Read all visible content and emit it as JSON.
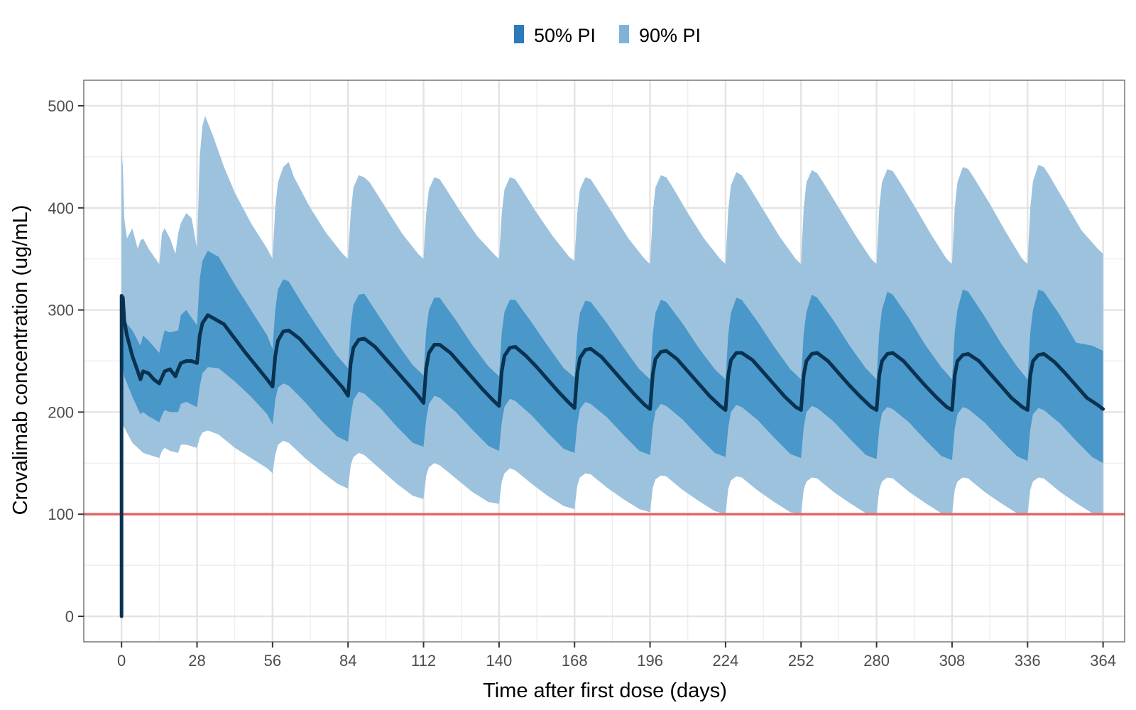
{
  "chart_data": {
    "type": "area",
    "title": "",
    "xlabel": "Time after first dose (days)",
    "ylabel": "Crovalimab concentration (ug/mL)",
    "xlim": [
      -14,
      372
    ],
    "ylim": [
      -25,
      525
    ],
    "x_ticks": [
      0,
      28,
      56,
      84,
      112,
      140,
      168,
      196,
      224,
      252,
      280,
      308,
      336,
      364
    ],
    "y_ticks": [
      0,
      100,
      200,
      300,
      400,
      500
    ],
    "grid": true,
    "legend": {
      "placement": "top",
      "items": [
        {
          "label": "50% PI",
          "color": "#2b7bba"
        },
        {
          "label": "90% PI",
          "color": "#7fb2d8"
        }
      ]
    },
    "reference_line": {
      "y": 100,
      "color": "#e06666"
    },
    "colors": {
      "band90": "#9cc2de",
      "band50": "#4a97c9",
      "median": "#08324f"
    },
    "series": [
      {
        "name": "",
        "kind": "median",
        "x": [
          0,
          0,
          0.5,
          1,
          2,
          4,
          6,
          7,
          8,
          10,
          12,
          14,
          15,
          16,
          18,
          20,
          21,
          22,
          24,
          26,
          28,
          29,
          30,
          32,
          34,
          38,
          42,
          46,
          50,
          54,
          56,
          57,
          58,
          60,
          62,
          66,
          70,
          74,
          78,
          82,
          84,
          85,
          86,
          88,
          90,
          94,
          98,
          102,
          106,
          110,
          112,
          113,
          114,
          116,
          118,
          122,
          126,
          130,
          134,
          138,
          140,
          141,
          142,
          144,
          146,
          150,
          154,
          158,
          162,
          166,
          168,
          169,
          170,
          172,
          174,
          178,
          182,
          186,
          190,
          194,
          196,
          197,
          198,
          200,
          202,
          206,
          210,
          214,
          218,
          222,
          224,
          225,
          226,
          228,
          230,
          234,
          238,
          242,
          246,
          250,
          252,
          253,
          254,
          256,
          258,
          262,
          266,
          270,
          274,
          278,
          280,
          281,
          282,
          284,
          286,
          290,
          294,
          298,
          302,
          306,
          308,
          309,
          310,
          312,
          314,
          318,
          322,
          326,
          330,
          334,
          336,
          337,
          338,
          340,
          342,
          346,
          350,
          354,
          358,
          362,
          364
        ],
        "y": [
          0,
          314,
          312,
          290,
          275,
          255,
          240,
          232,
          240,
          238,
          232,
          228,
          234,
          240,
          242,
          235,
          242,
          248,
          250,
          250,
          248,
          275,
          287,
          295,
          292,
          286,
          272,
          258,
          245,
          232,
          225,
          255,
          270,
          279,
          280,
          272,
          260,
          248,
          236,
          224,
          216,
          248,
          263,
          271,
          272,
          264,
          252,
          240,
          228,
          216,
          209,
          243,
          258,
          266,
          266,
          258,
          246,
          234,
          222,
          211,
          206,
          240,
          255,
          263,
          264,
          255,
          244,
          232,
          220,
          209,
          204,
          238,
          253,
          261,
          262,
          254,
          242,
          230,
          218,
          207,
          203,
          237,
          252,
          259,
          260,
          252,
          240,
          228,
          216,
          206,
          202,
          236,
          251,
          258,
          258,
          251,
          239,
          227,
          215,
          205,
          202,
          236,
          250,
          257,
          258,
          250,
          238,
          226,
          215,
          205,
          202,
          236,
          250,
          257,
          258,
          250,
          238,
          226,
          215,
          205,
          202,
          236,
          250,
          256,
          257,
          250,
          238,
          226,
          214,
          205,
          202,
          236,
          250,
          256,
          257,
          249,
          238,
          226,
          214,
          207,
          203
        ]
      },
      {
        "name": "",
        "kind": "band50_upper",
        "x": [
          0,
          0,
          0.5,
          1,
          4,
          7,
          8,
          10,
          14,
          15,
          16,
          18,
          21,
          22,
          24,
          28,
          29,
          30,
          32,
          36,
          42,
          48,
          54,
          56,
          57,
          58,
          60,
          62,
          68,
          74,
          80,
          84,
          85,
          86,
          88,
          90,
          96,
          102,
          108,
          112,
          113,
          114,
          116,
          118,
          124,
          130,
          136,
          140,
          141,
          142,
          144,
          146,
          152,
          158,
          164,
          168,
          169,
          170,
          172,
          174,
          180,
          186,
          192,
          196,
          197,
          198,
          200,
          202,
          208,
          214,
          220,
          224,
          225,
          226,
          228,
          230,
          236,
          242,
          248,
          252,
          253,
          254,
          256,
          258,
          264,
          270,
          276,
          280,
          281,
          282,
          284,
          286,
          292,
          298,
          304,
          308,
          309,
          310,
          312,
          314,
          320,
          326,
          332,
          336,
          337,
          338,
          340,
          342,
          348,
          354,
          360,
          364
        ],
        "y": [
          0,
          310,
          305,
          290,
          280,
          265,
          275,
          270,
          258,
          270,
          280,
          278,
          280,
          295,
          300,
          285,
          330,
          348,
          358,
          352,
          325,
          300,
          275,
          262,
          300,
          320,
          330,
          328,
          302,
          278,
          255,
          243,
          285,
          305,
          315,
          316,
          292,
          268,
          246,
          236,
          280,
          300,
          312,
          312,
          290,
          266,
          245,
          235,
          278,
          298,
          310,
          310,
          288,
          265,
          243,
          234,
          276,
          297,
          309,
          308,
          287,
          264,
          242,
          232,
          276,
          297,
          310,
          308,
          287,
          263,
          242,
          232,
          276,
          297,
          312,
          310,
          288,
          264,
          242,
          232,
          277,
          298,
          315,
          312,
          290,
          265,
          243,
          232,
          278,
          300,
          318,
          315,
          292,
          266,
          244,
          232,
          278,
          300,
          320,
          318,
          294,
          268,
          245,
          232,
          278,
          300,
          320,
          318,
          295,
          268,
          265,
          260
        ]
      },
      {
        "name": "",
        "kind": "band50_lower",
        "x": [
          0,
          0,
          0.5,
          1,
          4,
          7,
          8,
          10,
          14,
          15,
          16,
          18,
          21,
          22,
          24,
          28,
          29,
          30,
          32,
          36,
          42,
          48,
          54,
          56,
          57,
          58,
          60,
          62,
          68,
          74,
          80,
          84,
          85,
          86,
          88,
          90,
          96,
          102,
          108,
          112,
          113,
          114,
          116,
          118,
          124,
          130,
          136,
          140,
          141,
          142,
          144,
          146,
          152,
          158,
          164,
          168,
          169,
          170,
          172,
          174,
          180,
          186,
          192,
          196,
          197,
          198,
          200,
          202,
          208,
          214,
          220,
          224,
          225,
          226,
          228,
          230,
          236,
          242,
          248,
          252,
          253,
          254,
          256,
          258,
          264,
          270,
          276,
          280,
          281,
          282,
          284,
          286,
          292,
          298,
          304,
          308,
          309,
          310,
          312,
          314,
          320,
          326,
          332,
          336,
          337,
          338,
          340,
          342,
          348,
          354,
          360,
          364
        ],
        "y": [
          0,
          245,
          245,
          235,
          215,
          198,
          200,
          196,
          190,
          197,
          202,
          200,
          200,
          208,
          210,
          205,
          225,
          238,
          244,
          243,
          230,
          215,
          198,
          188,
          212,
          224,
          228,
          226,
          210,
          192,
          176,
          171,
          196,
          212,
          220,
          218,
          204,
          186,
          170,
          166,
          193,
          208,
          216,
          214,
          200,
          183,
          167,
          162,
          190,
          205,
          213,
          211,
          197,
          180,
          164,
          160,
          188,
          203,
          210,
          208,
          195,
          178,
          162,
          158,
          186,
          201,
          208,
          206,
          193,
          176,
          160,
          156,
          185,
          200,
          207,
          205,
          192,
          175,
          159,
          155,
          185,
          200,
          206,
          204,
          191,
          174,
          158,
          154,
          184,
          199,
          205,
          203,
          190,
          173,
          157,
          153,
          184,
          198,
          205,
          203,
          190,
          173,
          157,
          152,
          183,
          198,
          204,
          202,
          189,
          172,
          156,
          150
        ]
      },
      {
        "name": "",
        "kind": "band90_upper",
        "x": [
          0,
          0,
          0.5,
          1,
          2,
          4,
          6,
          7,
          8,
          10,
          14,
          15,
          16,
          18,
          20,
          21,
          22,
          24,
          26,
          28,
          29,
          30,
          31,
          34,
          38,
          42,
          48,
          54,
          56,
          57,
          58,
          60,
          62,
          64,
          70,
          76,
          82,
          84,
          85,
          86,
          88,
          90,
          92,
          98,
          104,
          110,
          112,
          113,
          114,
          116,
          118,
          120,
          126,
          132,
          138,
          140,
          141,
          142,
          144,
          146,
          148,
          154,
          160,
          166,
          168,
          169,
          170,
          172,
          174,
          176,
          182,
          188,
          194,
          196,
          197,
          198,
          200,
          202,
          204,
          210,
          216,
          222,
          224,
          225,
          226,
          228,
          230,
          232,
          238,
          244,
          250,
          252,
          253,
          254,
          256,
          258,
          260,
          266,
          272,
          278,
          280,
          281,
          282,
          284,
          286,
          288,
          294,
          300,
          306,
          308,
          309,
          310,
          312,
          314,
          316,
          322,
          328,
          334,
          336,
          337,
          338,
          340,
          342,
          344,
          350,
          356,
          362,
          364
        ],
        "y": [
          0,
          455,
          440,
          390,
          370,
          380,
          360,
          368,
          370,
          360,
          345,
          375,
          380,
          370,
          355,
          375,
          385,
          395,
          390,
          360,
          450,
          480,
          490,
          470,
          440,
          415,
          385,
          360,
          350,
          400,
          425,
          440,
          445,
          430,
          400,
          375,
          355,
          350,
          395,
          420,
          432,
          430,
          425,
          400,
          375,
          355,
          350,
          395,
          418,
          430,
          428,
          420,
          395,
          372,
          355,
          350,
          395,
          418,
          430,
          428,
          420,
          395,
          372,
          352,
          348,
          395,
          418,
          430,
          428,
          420,
          395,
          370,
          350,
          345,
          395,
          420,
          432,
          430,
          422,
          395,
          370,
          350,
          345,
          398,
          422,
          435,
          432,
          424,
          398,
          372,
          350,
          345,
          400,
          425,
          437,
          434,
          426,
          400,
          374,
          350,
          345,
          400,
          425,
          438,
          436,
          428,
          402,
          375,
          350,
          345,
          400,
          425,
          440,
          438,
          430,
          404,
          376,
          350,
          345,
          400,
          426,
          442,
          440,
          432,
          405,
          378,
          360,
          355
        ]
      },
      {
        "name": "",
        "kind": "band90_lower",
        "x": [
          0,
          0,
          1,
          4,
          8,
          14,
          15,
          16,
          18,
          21,
          22,
          24,
          28,
          29,
          30,
          32,
          36,
          42,
          48,
          54,
          56,
          57,
          58,
          60,
          62,
          68,
          74,
          80,
          84,
          85,
          86,
          88,
          90,
          96,
          102,
          108,
          112,
          113,
          114,
          116,
          118,
          124,
          130,
          136,
          140,
          141,
          142,
          144,
          146,
          152,
          158,
          164,
          168,
          169,
          170,
          172,
          174,
          180,
          186,
          192,
          196,
          197,
          198,
          200,
          202,
          208,
          214,
          220,
          224,
          225,
          226,
          228,
          230,
          236,
          242,
          248,
          252,
          253,
          254,
          256,
          258,
          264,
          270,
          276,
          280,
          281,
          282,
          284,
          286,
          292,
          298,
          304,
          308,
          309,
          310,
          312,
          314,
          320,
          326,
          332,
          336,
          337,
          338,
          340,
          342,
          348,
          354,
          360,
          364
        ],
        "y": [
          0,
          190,
          185,
          170,
          160,
          155,
          162,
          165,
          162,
          160,
          168,
          168,
          165,
          175,
          180,
          182,
          178,
          165,
          155,
          145,
          140,
          158,
          168,
          172,
          170,
          155,
          142,
          130,
          125,
          148,
          156,
          160,
          158,
          144,
          130,
          118,
          115,
          138,
          146,
          150,
          148,
          135,
          122,
          112,
          110,
          132,
          140,
          145,
          143,
          130,
          118,
          108,
          105,
          128,
          136,
          140,
          139,
          126,
          115,
          105,
          102,
          126,
          134,
          138,
          137,
          124,
          113,
          103,
          100,
          125,
          133,
          137,
          136,
          123,
          112,
          102,
          100,
          124,
          132,
          136,
          135,
          122,
          111,
          101,
          100,
          124,
          132,
          136,
          135,
          122,
          111,
          101,
          100,
          124,
          132,
          136,
          135,
          122,
          111,
          101,
          100,
          124,
          132,
          136,
          135,
          122,
          111,
          101,
          100
        ]
      }
    ]
  }
}
